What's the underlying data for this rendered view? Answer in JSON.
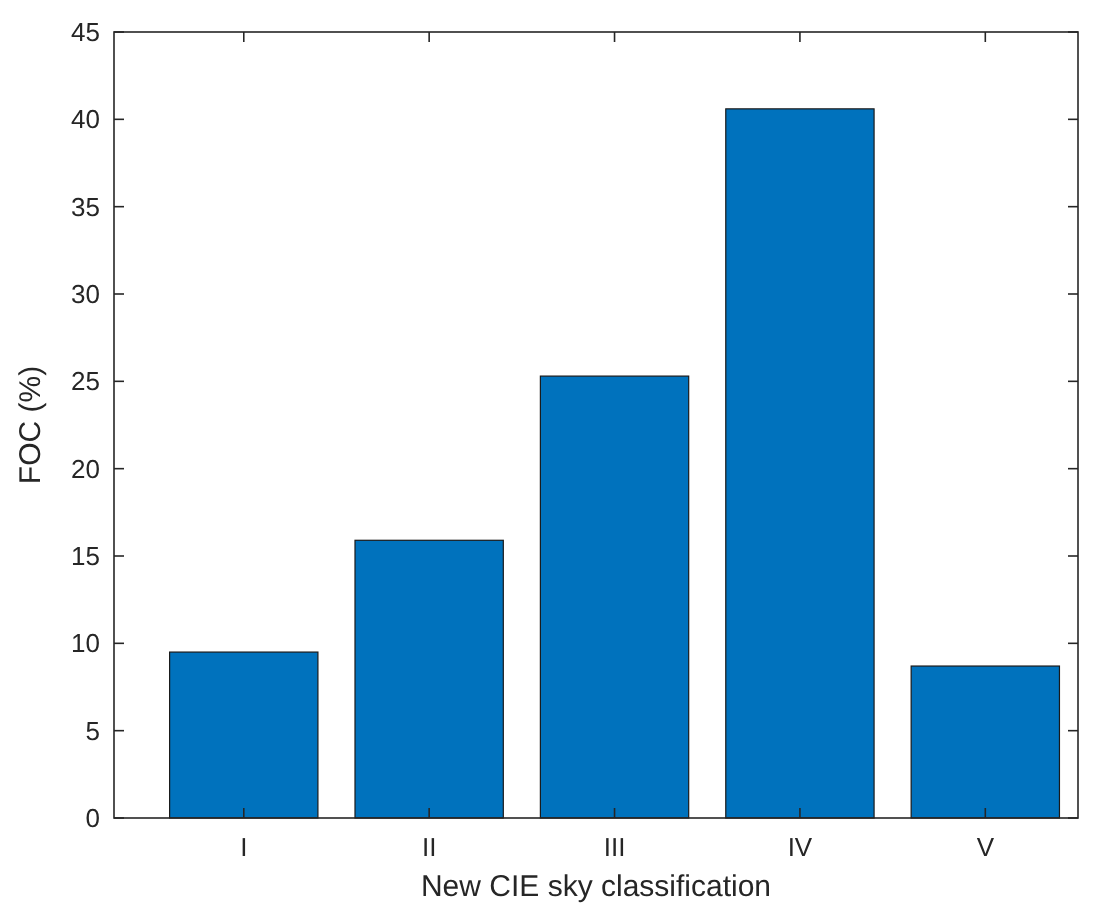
{
  "chart_data": {
    "type": "bar",
    "xlabel": "New CIE sky classification",
    "ylabel": "FOC (%)",
    "categories": [
      "I",
      "II",
      "III",
      "IV",
      "V"
    ],
    "values": [
      9.5,
      15.9,
      25.3,
      40.6,
      8.7
    ],
    "color": "#0072bd",
    "ylim": [
      0,
      45
    ],
    "yticks": [
      0,
      5,
      10,
      15,
      20,
      25,
      30,
      35,
      40,
      45
    ],
    "grid": false
  }
}
